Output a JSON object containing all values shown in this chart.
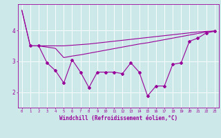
{
  "line_top_x": [
    0,
    1,
    2,
    3,
    4,
    5,
    6,
    7,
    8,
    9,
    10,
    11,
    12,
    13,
    14,
    15,
    16,
    17,
    18,
    19,
    20,
    21,
    22,
    23
  ],
  "line_top_y": [
    4.65,
    3.5,
    3.5,
    3.5,
    3.5,
    3.5,
    3.52,
    3.54,
    3.56,
    3.59,
    3.62,
    3.65,
    3.68,
    3.71,
    3.74,
    3.77,
    3.8,
    3.83,
    3.86,
    3.89,
    3.92,
    3.95,
    3.97,
    3.98
  ],
  "line_mid_x": [
    0,
    1,
    2,
    3,
    4,
    5,
    6,
    7,
    8,
    9,
    10,
    11,
    12,
    13,
    14,
    15,
    16,
    17,
    18,
    19,
    20,
    21,
    22,
    23
  ],
  "line_mid_y": [
    4.65,
    3.5,
    3.5,
    3.46,
    3.42,
    3.12,
    3.17,
    3.21,
    3.26,
    3.31,
    3.36,
    3.41,
    3.46,
    3.51,
    3.56,
    3.6,
    3.65,
    3.7,
    3.75,
    3.8,
    3.85,
    3.9,
    3.95,
    3.98
  ],
  "line_volatile_x": [
    1,
    2,
    3,
    4,
    5,
    6,
    7,
    8,
    9,
    10,
    11,
    12,
    13,
    14,
    15,
    16,
    17,
    18,
    19,
    20,
    21,
    22,
    23
  ],
  "line_volatile_y": [
    3.5,
    3.5,
    2.95,
    2.7,
    2.3,
    3.05,
    2.65,
    2.15,
    2.65,
    2.65,
    2.65,
    2.6,
    2.95,
    2.65,
    1.88,
    2.2,
    2.2,
    2.9,
    2.95,
    3.65,
    3.75,
    3.92,
    3.97
  ],
  "line_color": "#990099",
  "bg_color": "#cce8e8",
  "grid_color": "#b0d8d8",
  "xlabel": "Windchill (Refroidissement éolien,°C)",
  "ylim": [
    1.5,
    4.85
  ],
  "xlim": [
    -0.5,
    23.5
  ],
  "yticks": [
    2,
    3,
    4
  ],
  "xticks": [
    0,
    1,
    2,
    3,
    4,
    5,
    6,
    7,
    8,
    9,
    10,
    11,
    12,
    13,
    14,
    15,
    16,
    17,
    18,
    19,
    20,
    21,
    22,
    23
  ]
}
